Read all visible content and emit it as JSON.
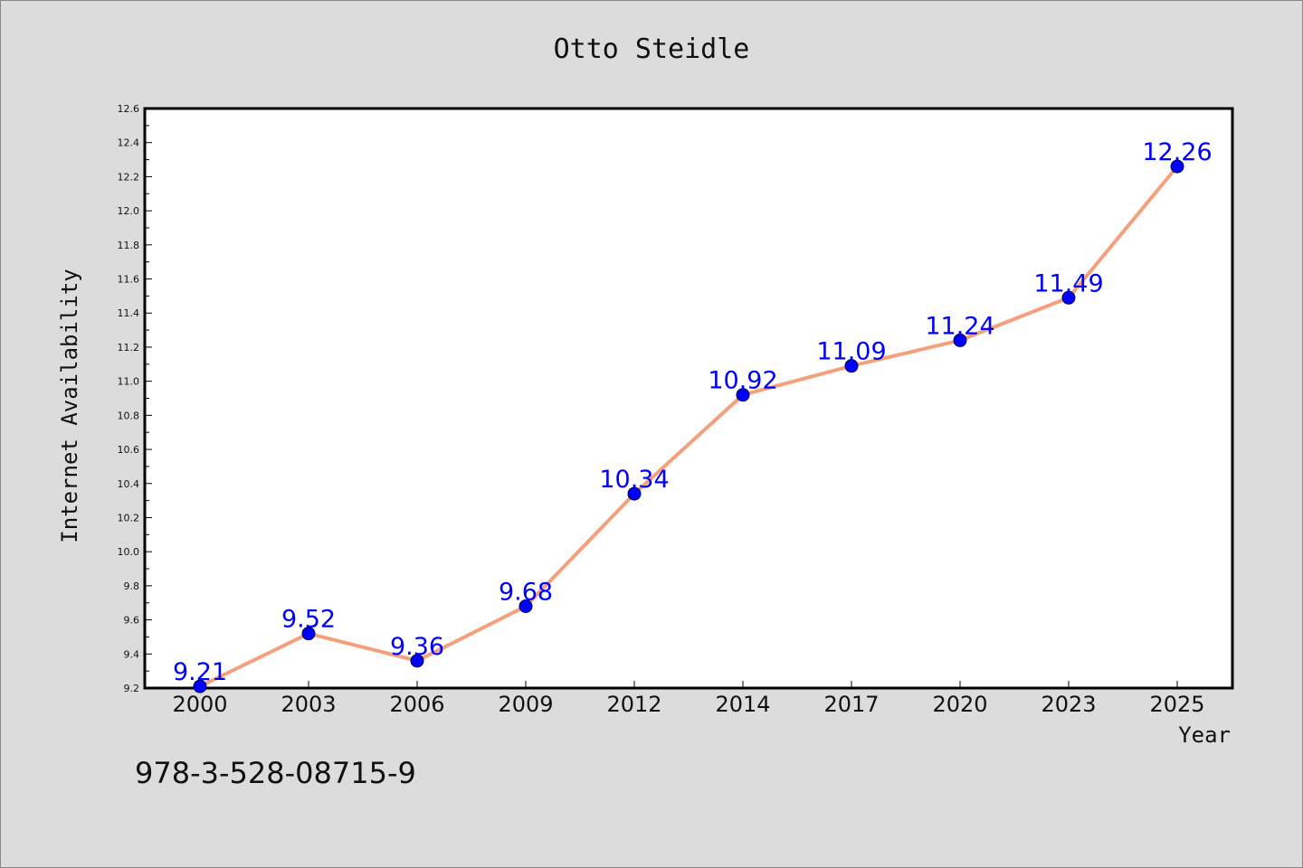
{
  "chart_data": {
    "type": "line",
    "title": "Otto Steidle",
    "xlabel": "Year",
    "ylabel": "Internet Availability",
    "categories": [
      "2000",
      "2003",
      "2006",
      "2009",
      "2012",
      "2014",
      "2017",
      "2020",
      "2023",
      "2025"
    ],
    "series": [
      {
        "values": [
          9.21,
          9.52,
          9.36,
          9.68,
          10.34,
          10.92,
          11.09,
          11.24,
          11.49,
          12.26
        ],
        "labels": [
          "9.21",
          "9.52",
          "9.36",
          "9.68",
          "10.34",
          "10.92",
          "11.09",
          "11.24",
          "11.49",
          "12.26"
        ]
      }
    ],
    "ylim": [
      9.2,
      12.6
    ],
    "yticks": [
      "9.2",
      "9.4",
      "9.6",
      "9.8",
      "10.0",
      "10.2",
      "10.4",
      "10.6",
      "10.8",
      "11.0",
      "11.2",
      "11.4",
      "11.6",
      "11.8",
      "12.0",
      "12.2",
      "12.4",
      "12.6"
    ],
    "grid": false,
    "colors": {
      "line": "#f4a07c",
      "marker": "#0000ff",
      "data_label": "#0000ff",
      "plot_background": "#ffffff",
      "figure_background": "#dcdcdc"
    }
  },
  "footnote": "978-3-528-08715-9"
}
